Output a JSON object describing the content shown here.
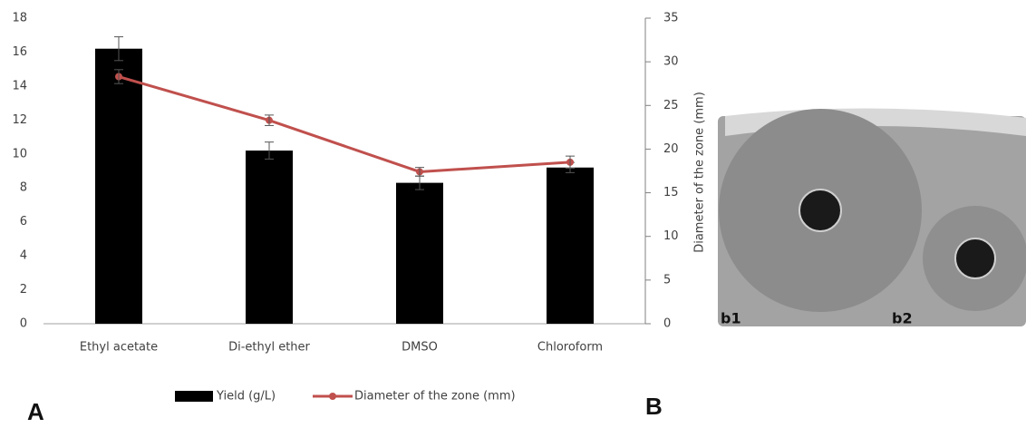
{
  "chart_data": {
    "type": "bar_line",
    "categories": [
      "Ethyl acetate",
      "Di-ethyl ether",
      "DMSO",
      "Chloroform"
    ],
    "series": [
      {
        "name": "Yield (g/L)",
        "type": "bar",
        "color": "#000000",
        "values": [
          16.2,
          10.2,
          8.3,
          9.2
        ],
        "errors": [
          0.7,
          0.5,
          0.4,
          0.3
        ]
      },
      {
        "name": "Diameter of the zone (mm)",
        "type": "line",
        "axis": "y2",
        "color": "#c0504d",
        "values": [
          28.3,
          23.3,
          17.4,
          18.5
        ],
        "errors": [
          0.8,
          0.6,
          0.5,
          0.7
        ]
      }
    ],
    "y2label": "Diameter of the zone (mm)",
    "ylim": [
      0,
      18
    ],
    "yticks": [
      0,
      2,
      4,
      6,
      8,
      10,
      12,
      14,
      16,
      18
    ],
    "y2lim": [
      0,
      35
    ],
    "y2ticks": [
      0,
      5,
      10,
      15,
      20,
      25,
      30,
      35
    ]
  },
  "panels": {
    "a": "A",
    "b": "B",
    "b1": "b1",
    "b2": "b2"
  }
}
